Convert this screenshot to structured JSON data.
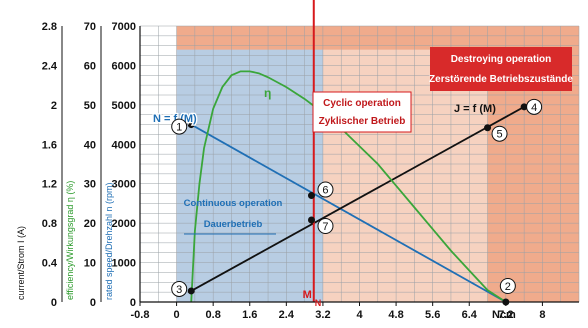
{
  "chart_data": {
    "type": "line",
    "x_axis": {
      "range": [
        -0.8,
        8.8
      ],
      "ticks": [
        -0.8,
        0,
        0.8,
        1.6,
        2.4,
        3.2,
        4,
        4.8,
        5.6,
        6.4,
        7.2,
        8
      ],
      "tick_labels": [
        "-0.8",
        "0",
        "0.8",
        "1.6",
        "2.4",
        "3.2",
        "4",
        "4.8",
        "5.6",
        "6.4",
        "7.2",
        "8"
      ],
      "unit_label": "Ncm"
    },
    "y_axes": {
      "speed": {
        "label": "rated speed/Drehzahl n (rpm)",
        "range": [
          0,
          7000
        ],
        "ticks": [
          0,
          1000,
          2000,
          3000,
          4000,
          5000,
          6000,
          7000
        ],
        "tick_labels": [
          "0",
          "1000",
          "2000",
          "3000",
          "4000",
          "5000",
          "6000",
          "7000"
        ]
      },
      "efficiency": {
        "label": "efficiency/Wirkungsgrad η (%)",
        "ticks": [
          0,
          10,
          20,
          30,
          40,
          50,
          60,
          70
        ],
        "tick_labels": [
          "0",
          "10",
          "20",
          "30",
          "40",
          "50",
          "60",
          "70"
        ]
      },
      "current": {
        "label": "current/Strom I (A)",
        "ticks": [
          0,
          0.4,
          0.8,
          1.2,
          1.6,
          2,
          2.4,
          2.8
        ],
        "tick_labels": [
          "0",
          "0.4",
          "0.8",
          "1.2",
          "1.6",
          "2",
          "2.4",
          "2.8"
        ]
      }
    },
    "regions": [
      {
        "name": "continuous",
        "label": "Continuous operation",
        "label2": "Dauerbetrieb",
        "x": [
          0,
          3.2
        ],
        "y_speed": [
          0,
          6400
        ],
        "color": "#b8cde3"
      },
      {
        "name": "cyclic",
        "label": "Cyclic operation",
        "label2": "Zyklischer Betrieb",
        "x": [
          3.2,
          6.8
        ],
        "y_speed": [
          0,
          6400
        ],
        "color": "#f6d2c0"
      },
      {
        "name": "destroying",
        "label": "Destroying operation",
        "label2": "Zerstörende Betriebszustände",
        "x": [
          0,
          8.8
        ],
        "y_speed": [
          0,
          7000
        ],
        "color": "#f0ab8c"
      }
    ],
    "series": [
      {
        "name": "N = f (M)",
        "color": "#1f6fb5",
        "x": [
          0.32,
          7.2
        ],
        "y": [
          4500,
          0
        ]
      },
      {
        "name": "J = f (M)",
        "color": "#111111",
        "x": [
          0.32,
          7.6
        ],
        "y": [
          280,
          4950
        ]
      },
      {
        "name": "η",
        "color": "#3aa63a",
        "x": [
          0.32,
          0.4,
          0.5,
          0.6,
          0.8,
          1.0,
          1.2,
          1.4,
          1.6,
          1.8,
          2.0,
          2.4,
          2.8,
          3.2,
          3.6,
          4.0,
          4.4,
          4.8,
          5.2,
          5.6,
          6.0,
          6.4,
          6.8,
          7.2
        ],
        "y": [
          0,
          1800,
          3000,
          3900,
          4900,
          5450,
          5750,
          5850,
          5850,
          5800,
          5700,
          5450,
          5150,
          4800,
          4400,
          3950,
          3500,
          2950,
          2400,
          1850,
          1300,
          800,
          300,
          0
        ]
      }
    ],
    "rated_torque": {
      "label": "M",
      "subscript": "N",
      "x": 3.0
    },
    "points": [
      {
        "label": "1",
        "x": 0.32,
        "y": 4500
      },
      {
        "label": "2",
        "x": 7.2,
        "y": 0
      },
      {
        "label": "3",
        "x": 0.32,
        "y": 280
      },
      {
        "label": "4",
        "x": 7.6,
        "y": 4950
      },
      {
        "label": "5",
        "x": 6.8,
        "y": 4420
      },
      {
        "label": "6",
        "x": 2.95,
        "y": 2700
      },
      {
        "label": "7",
        "x": 2.95,
        "y": 2080
      }
    ],
    "grid": true
  }
}
